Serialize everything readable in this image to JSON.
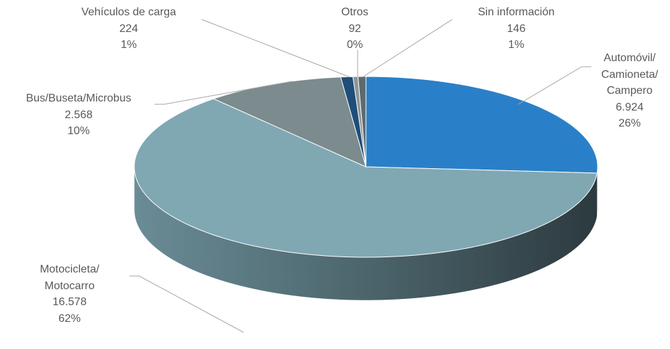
{
  "chart_data": {
    "type": "pie3d",
    "categories": [
      "Automóvil/\nCamioneta/\nCampero",
      "Motocicleta/\nMotocarro",
      "Bus/Buseta/Microbus",
      "Vehículos de carga",
      "Otros",
      "Sin información"
    ],
    "values": [
      6924,
      16578,
      2568,
      224,
      92,
      146
    ],
    "value_labels": [
      "6.924",
      "16.578",
      "2.568",
      "224",
      "92",
      "146"
    ],
    "percentage_labels": [
      "26%",
      "62%",
      "10%",
      "1%",
      "0%",
      "1%"
    ],
    "colors": [
      "#2a80c8",
      "#80a8b3",
      "#7b8b8e",
      "#1f4e79",
      "#8c9598",
      "#5e6a6b"
    ]
  }
}
